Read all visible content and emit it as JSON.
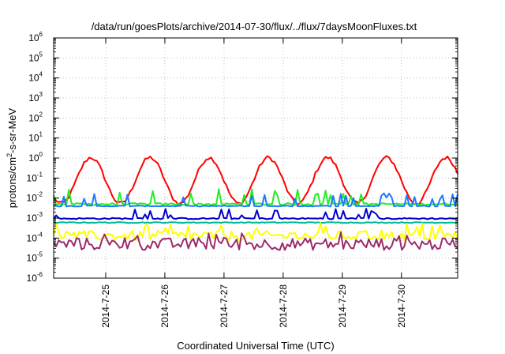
{
  "chart_data": {
    "type": "line",
    "title": "/data/run/goesPlots/archive/2014-07-30/flux/../flux/7daysMoonFluxes.txt",
    "xlabel": "Coordinated Universal Time (UTC)",
    "ylabel_main": "protons/cm",
    "ylabel_sup": "2",
    "ylabel_rest": "-s-sr-MeV",
    "y_scale": "log",
    "ylim": [
      1e-06,
      1000000.0
    ],
    "y_ticks": [
      {
        "value": 1e-06,
        "base": "10",
        "exp": "-6"
      },
      {
        "value": 1e-05,
        "base": "10",
        "exp": "-5"
      },
      {
        "value": 0.0001,
        "base": "10",
        "exp": "-4"
      },
      {
        "value": 0.001,
        "base": "10",
        "exp": "-3"
      },
      {
        "value": 0.01,
        "base": "10",
        "exp": "-2"
      },
      {
        "value": 0.1,
        "base": "10",
        "exp": "-1"
      },
      {
        "value": 1.0,
        "base": "10",
        "exp": "0"
      },
      {
        "value": 10.0,
        "base": "10",
        "exp": "1"
      },
      {
        "value": 100.0,
        "base": "10",
        "exp": "2"
      },
      {
        "value": 1000.0,
        "base": "10",
        "exp": "3"
      },
      {
        "value": 10000.0,
        "base": "10",
        "exp": "4"
      },
      {
        "value": 100000.0,
        "base": "10",
        "exp": "5"
      },
      {
        "value": 1000000.0,
        "base": "10",
        "exp": "6"
      }
    ],
    "x_range_days": [
      24.12,
      30.95
    ],
    "x_ticks": [
      {
        "day": 25,
        "label": "2014-7-25"
      },
      {
        "day": 26,
        "label": "2014-7-26"
      },
      {
        "day": 27,
        "label": "2014-7-27"
      },
      {
        "day": 28,
        "label": "2014-7-28"
      },
      {
        "day": 29,
        "label": "2014-7-29"
      },
      {
        "day": 30,
        "label": "2014-7-30"
      }
    ],
    "grid": true,
    "legend": "none",
    "series": [
      {
        "color": "#ff0000",
        "kind": "red-diurnal",
        "center": 0.075,
        "amp": 1.15,
        "base": 0.075,
        "noise": 0.2
      },
      {
        "color": "#22ee22",
        "kind": "spiky",
        "base": 0.005,
        "spike": 0.02,
        "noise": 0.12
      },
      {
        "color": "#1e78ff",
        "kind": "spiky",
        "base": 0.004,
        "spike": 0.013,
        "noise": 0.05
      },
      {
        "color": "#0000cc",
        "kind": "spiky",
        "base": 0.00095,
        "spike": 0.0022,
        "noise": 0.08
      },
      {
        "color": "#00bb99",
        "kind": "flat",
        "base": 0.0006,
        "noise": 0.05
      },
      {
        "color": "#ffff00",
        "kind": "noisy",
        "base": 0.00013,
        "noise": 0.25
      },
      {
        "color": "#9b2a6b",
        "kind": "noisy",
        "base": 5e-05,
        "noise": 0.3
      }
    ],
    "points_per_series": 160
  }
}
